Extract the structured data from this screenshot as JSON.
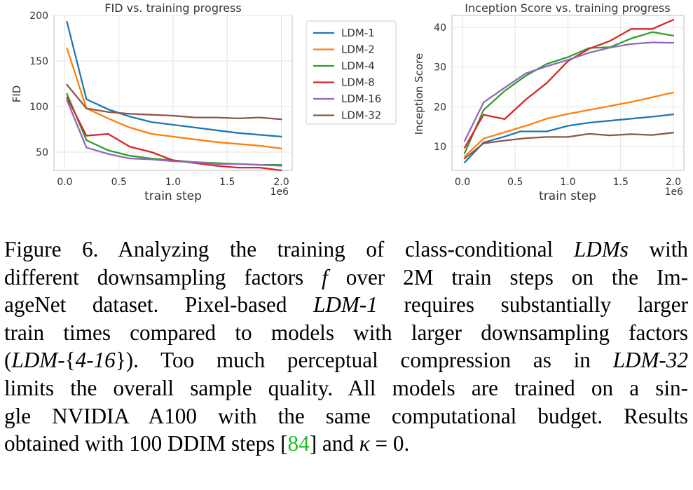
{
  "figure": {
    "legend": {
      "entries": [
        {
          "label": "LDM-1",
          "color": "#1f77b4"
        },
        {
          "label": "LDM-2",
          "color": "#ff7f0e"
        },
        {
          "label": "LDM-4",
          "color": "#2ca02c"
        },
        {
          "label": "LDM-8",
          "color": "#d62728"
        },
        {
          "label": "LDM-16",
          "color": "#9467bd"
        },
        {
          "label": "LDM-32",
          "color": "#8c564b"
        }
      ]
    }
  },
  "chart_data": [
    {
      "type": "line",
      "title": "FID vs. training progress",
      "xlabel": "train step",
      "ylabel": "FID",
      "x_offset_label": "1e6",
      "xlim": [
        -0.1,
        2.1
      ],
      "ylim": [
        30,
        200
      ],
      "xticks": [
        0.0,
        0.5,
        1.0,
        1.5,
        2.0
      ],
      "xtick_labels": [
        "0.0",
        "0.5",
        "1.0",
        "1.5",
        "2.0"
      ],
      "yticks": [
        50,
        100,
        150,
        200
      ],
      "ytick_labels": [
        "50",
        "100",
        "150",
        "200"
      ],
      "grid": true,
      "series": [
        {
          "name": "LDM-1",
          "color": "#1f77b4",
          "x": [
            0.02,
            0.2,
            0.4,
            0.6,
            0.8,
            1.0,
            1.2,
            1.4,
            1.6,
            1.8,
            2.0
          ],
          "y": [
            193,
            108,
            97,
            89,
            83,
            80,
            77,
            74,
            71,
            69,
            67
          ]
        },
        {
          "name": "LDM-2",
          "color": "#ff7f0e",
          "x": [
            0.02,
            0.2,
            0.4,
            0.6,
            0.8,
            1.0,
            1.2,
            1.4,
            1.6,
            1.8,
            2.0
          ],
          "y": [
            164,
            98,
            87,
            77,
            70,
            67,
            64,
            61,
            59,
            57,
            54
          ]
        },
        {
          "name": "LDM-4",
          "color": "#2ca02c",
          "x": [
            0.02,
            0.2,
            0.4,
            0.6,
            0.8,
            1.0,
            1.2,
            1.4,
            1.6,
            1.8,
            2.0
          ],
          "y": [
            114,
            63,
            52,
            46,
            43,
            41,
            39,
            38,
            37,
            36,
            36
          ]
        },
        {
          "name": "LDM-8",
          "color": "#d62728",
          "x": [
            0.02,
            0.2,
            0.4,
            0.6,
            0.8,
            1.0,
            1.2,
            1.4,
            1.6,
            1.8,
            2.0
          ],
          "y": [
            110,
            68,
            70,
            56,
            50,
            41,
            38,
            35,
            33,
            33,
            30
          ]
        },
        {
          "name": "LDM-16",
          "color": "#9467bd",
          "x": [
            0.02,
            0.2,
            0.4,
            0.6,
            0.8,
            1.0,
            1.2,
            1.4,
            1.6,
            1.8,
            2.0
          ],
          "y": [
            107,
            55,
            48,
            43,
            42,
            40,
            39,
            37,
            37,
            36,
            35
          ]
        },
        {
          "name": "LDM-32",
          "color": "#8c564b",
          "x": [
            0.02,
            0.2,
            0.4,
            0.6,
            0.8,
            1.0,
            1.2,
            1.4,
            1.6,
            1.8,
            2.0
          ],
          "y": [
            124,
            98,
            94,
            92,
            91,
            90,
            88,
            88,
            87,
            88,
            86
          ]
        }
      ]
    },
    {
      "type": "line",
      "title": "Inception Score vs. training progress",
      "xlabel": "train step",
      "ylabel": "Inception Score",
      "x_offset_label": "1e6",
      "xlim": [
        -0.1,
        2.1
      ],
      "ylim": [
        4,
        43
      ],
      "xticks": [
        0.0,
        0.5,
        1.0,
        1.5,
        2.0
      ],
      "xtick_labels": [
        "0.0",
        "0.5",
        "1.0",
        "1.5",
        "2.0"
      ],
      "yticks": [
        10,
        20,
        30,
        40
      ],
      "ytick_labels": [
        "10",
        "20",
        "30",
        "40"
      ],
      "grid": true,
      "series": [
        {
          "name": "LDM-1",
          "color": "#1f77b4",
          "x": [
            0.02,
            0.2,
            0.4,
            0.55,
            0.8,
            1.0,
            1.2,
            1.4,
            1.6,
            1.8,
            2.0
          ],
          "y": [
            6,
            11,
            12.5,
            13.8,
            13.8,
            15.2,
            16,
            16.5,
            17,
            17.5,
            18.1
          ]
        },
        {
          "name": "LDM-2",
          "color": "#ff7f0e",
          "x": [
            0.02,
            0.2,
            0.4,
            0.6,
            0.8,
            1.0,
            1.2,
            1.4,
            1.6,
            1.8,
            2.0
          ],
          "y": [
            7.5,
            12,
            13.6,
            15.2,
            17,
            18.2,
            19.2,
            20.2,
            21.2,
            22.4,
            23.6
          ]
        },
        {
          "name": "LDM-4",
          "color": "#2ca02c",
          "x": [
            0.02,
            0.2,
            0.4,
            0.6,
            0.8,
            1.0,
            1.2,
            1.4,
            1.6,
            1.8,
            2.0
          ],
          "y": [
            8.3,
            19.2,
            24,
            27.8,
            30.8,
            32.5,
            34.8,
            35,
            37.2,
            38.8,
            37.9
          ]
        },
        {
          "name": "LDM-8",
          "color": "#d62728",
          "x": [
            0.02,
            0.2,
            0.4,
            0.6,
            0.8,
            1.0,
            1.2,
            1.4,
            1.6,
            1.8,
            2.0
          ],
          "y": [
            9.7,
            18,
            16.9,
            21.8,
            26,
            31.5,
            34.6,
            36.6,
            39.6,
            39.6,
            41.9
          ]
        },
        {
          "name": "LDM-16",
          "color": "#9467bd",
          "x": [
            0.02,
            0.2,
            0.4,
            0.6,
            0.8,
            1.0,
            1.2,
            1.4,
            1.6,
            1.8,
            2.0
          ],
          "y": [
            11.4,
            21.1,
            24.8,
            28.4,
            30.2,
            31.8,
            33.6,
            34.9,
            35.8,
            36.2,
            36.1
          ]
        },
        {
          "name": "LDM-32",
          "color": "#8c564b",
          "x": [
            0.02,
            0.2,
            0.4,
            0.6,
            0.8,
            1.0,
            1.2,
            1.4,
            1.6,
            1.8,
            2.0
          ],
          "y": [
            7,
            10.8,
            11.5,
            12.1,
            12.4,
            12.4,
            13.2,
            12.8,
            13.1,
            12.9,
            13.5
          ]
        }
      ]
    }
  ],
  "caption": {
    "figure_label": "Figure 6.",
    "segments": [
      {
        "t": "Analyzing the training of class-conditional ",
        "s": "n"
      },
      {
        "t": "LDMs",
        "s": "i"
      },
      {
        "t": " with",
        "s": "n"
      },
      {
        "t": "different downsampling factors ",
        "s": "n"
      },
      {
        "t": "f",
        "s": "i"
      },
      {
        "t": " over 2M train steps on the Im-",
        "s": "n"
      },
      {
        "t": "ageNet dataset. Pixel-based ",
        "s": "n"
      },
      {
        "t": "LDM-1",
        "s": "i"
      },
      {
        "t": " requires substantially larger",
        "s": "n"
      },
      {
        "t": "train times compared to models with larger downsampling factors",
        "s": "n"
      },
      {
        "t": "(",
        "s": "n"
      },
      {
        "t": "LDM-",
        "s": "i"
      },
      {
        "t": "{",
        "s": "n"
      },
      {
        "t": "4-16",
        "s": "i"
      },
      {
        "t": "}). Too much perceptual compression as in ",
        "s": "n"
      },
      {
        "t": "LDM-32",
        "s": "i"
      },
      {
        "t": "limits the overall sample quality. All models are trained on a sin-",
        "s": "n"
      },
      {
        "t": "gle NVIDIA A100 with the same computational budget. Results",
        "s": "n"
      },
      {
        "t": "obtained with 100 DDIM steps [",
        "s": "n"
      },
      {
        "t": "84",
        "s": "r"
      },
      {
        "t": "] and ",
        "s": "n"
      },
      {
        "t": "κ",
        "s": "i"
      },
      {
        "t": " = 0.",
        "s": "n"
      }
    ]
  }
}
